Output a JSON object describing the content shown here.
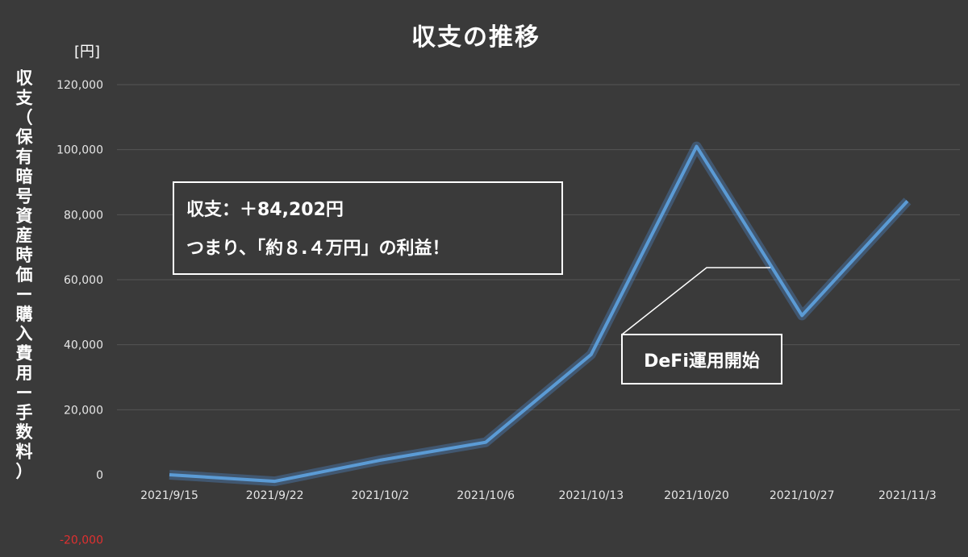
{
  "chart_data": {
    "type": "line",
    "title": "収支の推移",
    "unit_label": "[円]",
    "ylabel": "収支（保有暗号資産時価ー購入費用ー手数料）",
    "categories": [
      "2021/9/15",
      "2021/9/22",
      "2021/10/2",
      "2021/10/6",
      "2021/10/13",
      "2021/10/20",
      "2021/10/27",
      "2021/11/3"
    ],
    "series": [
      {
        "values": [
          0,
          -2000,
          4500,
          10000,
          37000,
          101000,
          49000,
          84202
        ]
      }
    ],
    "yticks": [
      "120,000",
      "100,000",
      "80,000",
      "60,000",
      "40,000",
      "20,000",
      "0",
      "-20,000"
    ],
    "ylim": [
      -20000,
      120000
    ],
    "grid": true,
    "line_color": "#5b9bd5",
    "negative_tick_color": "#e03030",
    "annotations": {
      "summary_line1": "収支：＋84,202円",
      "summary_line2": "つまり、「約８.４万円」の利益！",
      "callout": "DeFi運用開始"
    }
  }
}
